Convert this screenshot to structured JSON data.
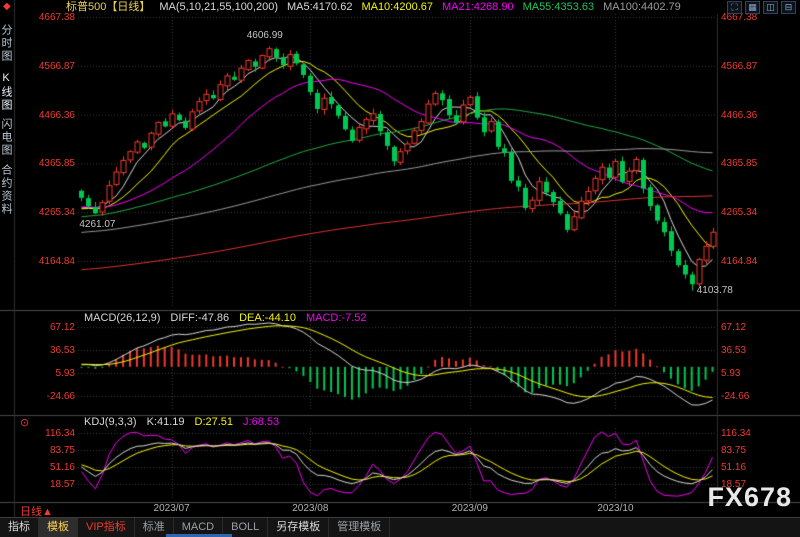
{
  "topbar": {
    "title": "标普500【日线】",
    "title_color": "#e9cf50",
    "ma_items": [
      {
        "label": "MA(5,10,21,55,100,200)",
        "color": "#d8d8d8"
      },
      {
        "label": "MA5:4170.62",
        "color": "#d8d8d8"
      },
      {
        "label": "MA10:4200.67",
        "color": "#f5f500"
      },
      {
        "label": "MA21:4268.90",
        "color": "#f500f5"
      },
      {
        "label": "MA55:4353.63",
        "color": "#22c25a"
      },
      {
        "label": "MA100:4402.79",
        "color": "#9a9a9a"
      }
    ],
    "window_icons": [
      {
        "name": "expand-icon",
        "glyph": "⛶"
      },
      {
        "name": "grid-layout-icon",
        "glyph": "▦"
      },
      {
        "name": "split-horizontal-icon",
        "glyph": "◫"
      },
      {
        "name": "split-vertical-icon",
        "glyph": "⊟"
      }
    ]
  },
  "sidebar": {
    "items": [
      {
        "label": "分时图",
        "color": "#b9c6d2"
      },
      {
        "label": "K线图",
        "color": "#eaf3f9"
      },
      {
        "label": "闪电图",
        "color": "#b9c6d2"
      },
      {
        "label": "合约资料",
        "color": "#b9c6d2"
      }
    ]
  },
  "main_panel": {
    "y_axis": [
      "4667.38",
      "4566.87",
      "4466.36",
      "4365.85",
      "4265.34",
      "4164.84"
    ],
    "axis_color": "#f03b2e"
  },
  "macd_panel": {
    "header": [
      {
        "label": "MACD(26,12,9)",
        "color": "#d8d8d8"
      },
      {
        "label": "DIFF:-47.86",
        "color": "#d8d8d8"
      },
      {
        "label": "DEA:-44.10",
        "color": "#f5f500"
      },
      {
        "label": "MACD:-7.52",
        "color": "#f500f5"
      }
    ],
    "y_axis": [
      "67.12",
      "36.53",
      "5.93",
      "-24.66"
    ]
  },
  "kdj_panel": {
    "marker": "⊙",
    "header": [
      {
        "label": "KDJ(9,3,3)",
        "color": "#d8d8d8"
      },
      {
        "label": "K:41.19",
        "color": "#d8d8d8"
      },
      {
        "label": "D:27.51",
        "color": "#f5f500"
      },
      {
        "label": "J:68.53",
        "color": "#f500f5"
      }
    ],
    "y_axis": [
      "116.34",
      "83.75",
      "51.16",
      "18.57"
    ]
  },
  "footer": {
    "period_label": "日线",
    "period_arrow": "▲",
    "watermark": "FX678",
    "date_labels": [
      "2023/07",
      "2023/08",
      "2023/09",
      "2023/10"
    ]
  },
  "toolbar": {
    "items": [
      {
        "name": "tab-indicators",
        "label": "指标",
        "color": "#d8d8d8",
        "active": false
      },
      {
        "name": "tab-templates",
        "label": "模板",
        "color": "#ffd24a",
        "active": true
      },
      {
        "name": "tab-vip-indicators",
        "label": "VIP指标",
        "color": "#f03b2e",
        "active": false
      },
      {
        "name": "tab-standard",
        "label": "标准",
        "color": "#9aa0a6",
        "active": false
      },
      {
        "name": "tab-macd",
        "label": "MACD",
        "color": "#9aa0a6",
        "active": false
      },
      {
        "name": "tab-boll",
        "label": "BOLL",
        "color": "#9aa0a6",
        "active": false
      },
      {
        "name": "tab-save-template",
        "label": "另存模板",
        "color": "#d8d8d8",
        "active": false
      },
      {
        "name": "tab-manage-templates",
        "label": "管理模板",
        "color": "#9aa0a6",
        "active": false
      }
    ]
  },
  "chart_data": {
    "type": "candlestick",
    "symbol": "标普500",
    "period": "日线",
    "price_axis": [
      4667.38,
      4566.87,
      4466.36,
      4365.85,
      4265.34,
      4164.84
    ],
    "closes": [
      4295,
      4278,
      4263,
      4285,
      4320,
      4348,
      4372,
      4390,
      4410,
      4398,
      4428,
      4450,
      4442,
      4468,
      4455,
      4439,
      4472,
      4493,
      4508,
      4500,
      4528,
      4546,
      4538,
      4562,
      4578,
      4565,
      4588,
      4602,
      4585,
      4568,
      4590,
      4572,
      4548,
      4513,
      4478,
      4500,
      4488,
      4464,
      4436,
      4412,
      4440,
      4456,
      4468,
      4432,
      4402,
      4370,
      4390,
      4406,
      4433,
      4452,
      4488,
      4510,
      4496,
      4465,
      4450,
      4486,
      4502,
      4460,
      4430,
      4452,
      4400,
      4388,
      4330,
      4318,
      4274,
      4290,
      4328,
      4306,
      4286,
      4263,
      4229,
      4256,
      4288,
      4308,
      4335,
      4358,
      4336,
      4370,
      4328,
      4350,
      4374,
      4314,
      4278,
      4248,
      4224,
      4186,
      4156,
      4137,
      4117,
      4168,
      4195,
      4224
    ],
    "extremes": [
      {
        "index": 2,
        "type": "low",
        "value": 4261.07
      },
      {
        "index": 27,
        "type": "high",
        "value": 4606.99
      },
      {
        "index": 88,
        "type": "low",
        "value": 4103.78
      }
    ],
    "months": [
      {
        "label": "2023/07",
        "index": 13
      },
      {
        "label": "2023/08",
        "index": 33
      },
      {
        "label": "2023/09",
        "index": 56
      },
      {
        "label": "2023/10",
        "index": 77
      }
    ],
    "ma": {
      "periods": [
        5,
        10,
        21,
        55,
        100,
        200
      ],
      "colors": [
        "#d8d8d8",
        "#f5f500",
        "#f500f5",
        "#22aa44",
        "#9a9a9a",
        "#e03333"
      ],
      "last_values": {
        "MA5": 4170.62,
        "MA10": 4200.67,
        "MA21": 4268.9,
        "MA55": 4353.63,
        "MA100": 4402.79
      }
    },
    "macd": {
      "params": [
        26,
        12,
        9
      ],
      "diff": -47.86,
      "dea": -44.1,
      "macd": -7.52,
      "axis": [
        67.12,
        36.53,
        5.93,
        -24.66
      ]
    },
    "kdj": {
      "params": [
        9,
        3,
        3
      ],
      "k": 41.19,
      "d": 27.51,
      "j": 68.53,
      "axis": [
        116.34,
        83.75,
        51.16,
        18.57
      ]
    },
    "colors": {
      "up": "#f03b2e",
      "down": "#00c853"
    }
  }
}
